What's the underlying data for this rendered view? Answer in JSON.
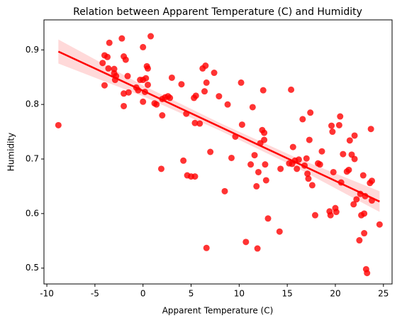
{
  "chart_data": {
    "type": "scatter",
    "title": "Relation between Apparent Temperature (C) and Humidity",
    "x_label": "Apparent Temperature (C)",
    "y_label": "Humidity",
    "color": "#ff0000",
    "xlim": [
      -10.3,
      25.9
    ],
    "ylim": [
      0.471,
      0.955
    ],
    "xticks": [
      -10,
      -5,
      0,
      5,
      10,
      15,
      20,
      25
    ],
    "yticks": [
      0.5,
      0.6,
      0.7,
      0.8,
      0.9
    ],
    "grid": false,
    "x": [
      -8.8,
      -4.2,
      -4,
      -3.7,
      -3.5,
      -4,
      -3.6,
      -3,
      -3,
      -2.9,
      -2.8,
      -2.2,
      -2,
      -1.8,
      -2,
      -1.6,
      -1.5,
      -2,
      -0.7,
      -0.5,
      -0.3,
      0,
      0,
      0.3,
      0.4,
      0.5,
      0.5,
      0.8,
      0,
      0.2,
      1.2,
      1.4,
      2,
      2,
      2.3,
      2.6,
      2.8,
      3,
      1.9,
      4,
      4.2,
      4.5,
      4.6,
      5,
      5.3,
      5.4,
      5.5,
      5.4,
      5.9,
      6.2,
      6.5,
      6.4,
      6.6,
      6.6,
      7,
      7.4,
      7.9,
      8.5,
      8.8,
      9.2,
      9.6,
      10.2,
      10.3,
      10.7,
      11.2,
      11.4,
      11.6,
      11.8,
      11.9,
      12,
      12.2,
      12.4,
      12.5,
      12.6,
      12.6,
      12.7,
      12.8,
      13,
      14.2,
      14.3,
      15.2,
      15.4,
      15.5,
      15.6,
      15.8,
      16,
      16.2,
      16.6,
      16.8,
      17,
      17.1,
      17.2,
      17.3,
      17.4,
      17.6,
      17.9,
      18.2,
      18.4,
      18.6,
      19.4,
      19.5,
      19.6,
      19.7,
      19.8,
      20,
      20.1,
      20.4,
      20.5,
      20.6,
      20.8,
      21.2,
      21.4,
      21.5,
      21.7,
      21.9,
      22,
      22,
      22.2,
      22.5,
      22.6,
      22.7,
      22.9,
      23,
      23,
      23.1,
      23.2,
      23.3,
      23.6,
      23.7,
      23.8,
      23.8,
      24.6
    ],
    "values": [
      0.762,
      0.876,
      0.89,
      0.887,
      0.913,
      0.835,
      0.866,
      0.865,
      0.857,
      0.845,
      0.852,
      0.921,
      0.888,
      0.882,
      0.82,
      0.852,
      0.822,
      0.797,
      0.831,
      0.826,
      0.845,
      0.905,
      0.845,
      0.848,
      0.87,
      0.866,
      0.836,
      0.925,
      0.805,
      0.823,
      0.802,
      0.8,
      0.81,
      0.78,
      0.813,
      0.815,
      0.812,
      0.849,
      0.682,
      0.837,
      0.697,
      0.783,
      0.67,
      0.668,
      0.812,
      0.668,
      0.816,
      0.766,
      0.765,
      0.866,
      0.871,
      0.824,
      0.84,
      0.537,
      0.713,
      0.858,
      0.815,
      0.641,
      0.8,
      0.702,
      0.741,
      0.84,
      0.763,
      0.548,
      0.69,
      0.795,
      0.707,
      0.65,
      0.536,
      0.676,
      0.729,
      0.753,
      0.826,
      0.748,
      0.735,
      0.69,
      0.661,
      0.591,
      0.567,
      0.682,
      0.692,
      0.827,
      0.691,
      0.722,
      0.697,
      0.682,
      0.699,
      0.773,
      0.688,
      0.701,
      0.673,
      0.664,
      0.735,
      0.785,
      0.652,
      0.597,
      0.692,
      0.69,
      0.714,
      0.604,
      0.597,
      0.761,
      0.75,
      0.676,
      0.61,
      0.603,
      0.762,
      0.778,
      0.657,
      0.709,
      0.677,
      0.68,
      0.734,
      0.708,
      0.617,
      0.743,
      0.7,
      0.626,
      0.551,
      0.636,
      0.597,
      0.67,
      0.6,
      0.564,
      0.632,
      0.498,
      0.491,
      0.656,
      0.755,
      0.66,
      0.624,
      0.58
    ],
    "regression": {
      "x": [
        -8.8,
        0,
        8,
        16,
        24.6
      ],
      "y": [
        0.897,
        0.825,
        0.759,
        0.693,
        0.622
      ],
      "lower": [
        0.875,
        0.815,
        0.752,
        0.684,
        0.603
      ],
      "upper": [
        0.919,
        0.835,
        0.766,
        0.702,
        0.641
      ]
    }
  }
}
